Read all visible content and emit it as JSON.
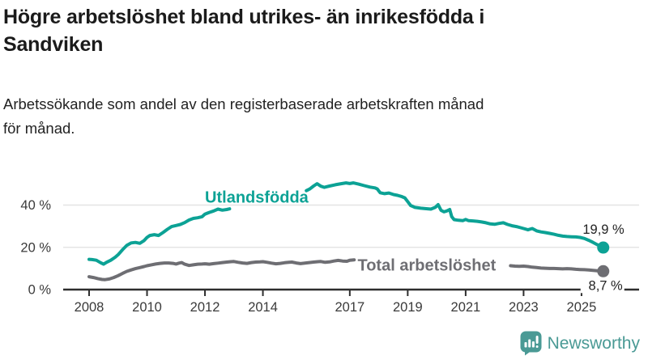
{
  "header": {
    "title": "Högre arbetslöshet bland utrikes- än inrikesfödda i\nSandviken",
    "subtitle": "Arbetssökande som andel av den registerbaserade arbetskraften månad\nför månad."
  },
  "branding": {
    "logo_text": "Newsworthy",
    "logo_color": "#4a9a95",
    "logo_icon": "bar-chart-speech-bubble-icon"
  },
  "chart_data": {
    "type": "line",
    "title": "",
    "xlabel": "",
    "ylabel": "",
    "x_axis": {
      "ticks": [
        2008,
        2010,
        2012,
        2014,
        2017,
        2019,
        2021,
        2023,
        2025
      ],
      "tick_labels": [
        "2008",
        "2010",
        "2012",
        "2014",
        "2017",
        "2019",
        "2021",
        "2023",
        "2025"
      ],
      "range": [
        2007.1,
        2027.0
      ]
    },
    "y_axis": {
      "ticks": [
        {
          "value": 0,
          "label": "0 %"
        },
        {
          "value": 20,
          "label": "20 %"
        },
        {
          "value": 40,
          "label": "40 %"
        }
      ],
      "range": [
        0,
        55
      ],
      "grid": true
    },
    "colors": {
      "axis": "#2e2e2e",
      "grid": "#e4e4e4",
      "tick_text": "#3a3a3a",
      "value_label_text": "#222222"
    },
    "series": [
      {
        "name": "Utlandsfödda",
        "color": "#0ca295",
        "end_value": 19.9,
        "end_label": "19,9 %",
        "end_label_offset": [
          26,
          -17
        ],
        "end_label_bg": false,
        "label_anchor": [
          2012.0,
          41.2
        ],
        "segments": [
          [
            [
              2008.0,
              14.3
            ],
            [
              2008.1,
              14.2
            ],
            [
              2008.25,
              13.9
            ],
            [
              2008.4,
              12.7
            ],
            [
              2008.5,
              12.0
            ],
            [
              2008.6,
              12.9
            ],
            [
              2008.75,
              13.9
            ],
            [
              2008.9,
              15.3
            ],
            [
              2009.0,
              16.5
            ],
            [
              2009.15,
              18.8
            ],
            [
              2009.3,
              20.9
            ],
            [
              2009.45,
              22.1
            ],
            [
              2009.6,
              22.3
            ],
            [
              2009.75,
              21.9
            ],
            [
              2009.9,
              23.2
            ],
            [
              2010.0,
              24.7
            ],
            [
              2010.1,
              25.6
            ],
            [
              2010.25,
              26.0
            ],
            [
              2010.4,
              25.6
            ],
            [
              2010.55,
              27.0
            ],
            [
              2010.7,
              28.5
            ],
            [
              2010.85,
              29.8
            ],
            [
              2011.0,
              30.3
            ],
            [
              2011.15,
              30.8
            ],
            [
              2011.3,
              31.7
            ],
            [
              2011.45,
              32.9
            ],
            [
              2011.6,
              33.7
            ],
            [
              2011.75,
              34.0
            ],
            [
              2011.9,
              34.5
            ],
            [
              2012.0,
              35.7
            ],
            [
              2012.15,
              36.5
            ],
            [
              2012.3,
              37.2
            ],
            [
              2012.45,
              38.1
            ],
            [
              2012.6,
              37.6
            ],
            [
              2012.75,
              37.9
            ],
            [
              2012.85,
              38.2
            ]
          ],
          [
            [
              2015.5,
              46.8
            ],
            [
              2015.62,
              47.6
            ],
            [
              2015.75,
              49.0
            ],
            [
              2015.87,
              50.1
            ],
            [
              2016.0,
              48.9
            ],
            [
              2016.12,
              48.4
            ],
            [
              2016.3,
              49.0
            ],
            [
              2016.5,
              49.6
            ],
            [
              2016.7,
              50.1
            ],
            [
              2016.87,
              50.5
            ],
            [
              2017.0,
              50.2
            ],
            [
              2017.12,
              50.5
            ],
            [
              2017.3,
              49.9
            ],
            [
              2017.5,
              49.2
            ],
            [
              2017.7,
              48.5
            ],
            [
              2017.87,
              48.1
            ],
            [
              2017.95,
              47.6
            ],
            [
              2018.05,
              45.8
            ],
            [
              2018.2,
              45.4
            ],
            [
              2018.35,
              45.7
            ],
            [
              2018.5,
              45.0
            ],
            [
              2018.65,
              44.6
            ],
            [
              2018.8,
              44.0
            ],
            [
              2018.9,
              43.4
            ],
            [
              2019.0,
              41.6
            ],
            [
              2019.1,
              39.8
            ],
            [
              2019.25,
              38.9
            ],
            [
              2019.45,
              38.5
            ],
            [
              2019.6,
              38.3
            ],
            [
              2019.8,
              38.1
            ],
            [
              2019.95,
              38.9
            ],
            [
              2020.05,
              40.2
            ],
            [
              2020.15,
              37.5
            ],
            [
              2020.25,
              36.8
            ],
            [
              2020.35,
              37.2
            ],
            [
              2020.45,
              37.9
            ],
            [
              2020.52,
              34.5
            ],
            [
              2020.6,
              33.1
            ],
            [
              2020.75,
              32.8
            ],
            [
              2020.9,
              32.6
            ],
            [
              2021.0,
              33.2
            ],
            [
              2021.1,
              32.6
            ],
            [
              2021.25,
              32.5
            ],
            [
              2021.4,
              32.3
            ],
            [
              2021.55,
              32.0
            ],
            [
              2021.7,
              31.6
            ],
            [
              2021.85,
              31.1
            ],
            [
              2022.0,
              30.9
            ],
            [
              2022.15,
              31.3
            ],
            [
              2022.3,
              31.6
            ],
            [
              2022.45,
              30.8
            ],
            [
              2022.6,
              30.2
            ],
            [
              2022.75,
              29.8
            ],
            [
              2022.9,
              29.3
            ],
            [
              2023.0,
              28.9
            ],
            [
              2023.15,
              28.3
            ],
            [
              2023.3,
              28.9
            ],
            [
              2023.45,
              27.8
            ],
            [
              2023.6,
              27.3
            ],
            [
              2023.75,
              27.0
            ],
            [
              2023.9,
              26.6
            ],
            [
              2024.05,
              26.2
            ],
            [
              2024.2,
              25.7
            ],
            [
              2024.35,
              25.3
            ],
            [
              2024.5,
              25.1
            ],
            [
              2024.65,
              25.0
            ],
            [
              2024.8,
              24.9
            ],
            [
              2024.95,
              24.7
            ],
            [
              2025.1,
              24.2
            ],
            [
              2025.25,
              23.3
            ],
            [
              2025.4,
              22.3
            ],
            [
              2025.55,
              21.2
            ],
            [
              2025.75,
              19.9
            ]
          ]
        ]
      },
      {
        "name": "Total arbetslöshet",
        "color": "#6e6e73",
        "end_value": 8.7,
        "end_label": "8,7 %",
        "end_label_offset": [
          24,
          23
        ],
        "end_label_bg": true,
        "label_anchor": [
          2017.27,
          9.0
        ],
        "segments": [
          [
            [
              2008.0,
              6.1
            ],
            [
              2008.15,
              5.7
            ],
            [
              2008.3,
              5.2
            ],
            [
              2008.45,
              4.8
            ],
            [
              2008.55,
              4.7
            ],
            [
              2008.7,
              5.0
            ],
            [
              2008.85,
              5.7
            ],
            [
              2009.0,
              6.6
            ],
            [
              2009.15,
              7.6
            ],
            [
              2009.3,
              8.6
            ],
            [
              2009.45,
              9.3
            ],
            [
              2009.6,
              9.9
            ],
            [
              2009.75,
              10.4
            ],
            [
              2009.9,
              10.9
            ],
            [
              2010.0,
              11.3
            ],
            [
              2010.15,
              11.7
            ],
            [
              2010.3,
              12.1
            ],
            [
              2010.45,
              12.4
            ],
            [
              2010.6,
              12.6
            ],
            [
              2010.75,
              12.6
            ],
            [
              2010.9,
              12.4
            ],
            [
              2011.0,
              12.1
            ],
            [
              2011.1,
              12.5
            ],
            [
              2011.2,
              12.8
            ],
            [
              2011.3,
              12.0
            ],
            [
              2011.45,
              11.4
            ],
            [
              2011.6,
              11.7
            ],
            [
              2011.75,
              12.0
            ],
            [
              2011.9,
              12.1
            ],
            [
              2012.0,
              12.2
            ],
            [
              2012.15,
              12.0
            ],
            [
              2012.3,
              12.3
            ],
            [
              2012.45,
              12.5
            ],
            [
              2012.6,
              12.8
            ],
            [
              2012.75,
              13.0
            ],
            [
              2012.9,
              13.2
            ],
            [
              2013.0,
              13.3
            ],
            [
              2013.15,
              12.9
            ],
            [
              2013.3,
              12.6
            ],
            [
              2013.45,
              12.4
            ],
            [
              2013.6,
              12.8
            ],
            [
              2013.75,
              13.0
            ],
            [
              2013.9,
              13.1
            ],
            [
              2014.0,
              13.2
            ],
            [
              2014.15,
              12.9
            ],
            [
              2014.3,
              12.5
            ],
            [
              2014.45,
              12.2
            ],
            [
              2014.6,
              12.4
            ],
            [
              2014.75,
              12.7
            ],
            [
              2014.9,
              12.9
            ],
            [
              2015.0,
              13.0
            ],
            [
              2015.15,
              12.6
            ],
            [
              2015.3,
              12.3
            ],
            [
              2015.45,
              12.5
            ],
            [
              2015.6,
              12.8
            ],
            [
              2015.75,
              13.0
            ],
            [
              2015.9,
              13.2
            ],
            [
              2016.0,
              13.3
            ],
            [
              2016.15,
              12.9
            ],
            [
              2016.3,
              13.1
            ],
            [
              2016.45,
              13.5
            ],
            [
              2016.6,
              13.8
            ],
            [
              2016.75,
              13.5
            ],
            [
              2016.9,
              13.4
            ],
            [
              2017.0,
              13.9
            ],
            [
              2017.15,
              14.1
            ]
          ],
          [
            [
              2022.55,
              11.3
            ],
            [
              2022.7,
              11.1
            ],
            [
              2022.85,
              11.0
            ],
            [
              2023.0,
              11.1
            ],
            [
              2023.15,
              10.9
            ],
            [
              2023.3,
              10.6
            ],
            [
              2023.45,
              10.4
            ],
            [
              2023.6,
              10.2
            ],
            [
              2023.75,
              10.1
            ],
            [
              2023.9,
              10.0
            ],
            [
              2024.05,
              10.0
            ],
            [
              2024.2,
              9.9
            ],
            [
              2024.35,
              9.8
            ],
            [
              2024.5,
              9.9
            ],
            [
              2024.65,
              9.8
            ],
            [
              2024.8,
              9.6
            ],
            [
              2024.95,
              9.5
            ],
            [
              2025.1,
              9.4
            ],
            [
              2025.25,
              9.3
            ],
            [
              2025.4,
              9.1
            ],
            [
              2025.55,
              8.9
            ],
            [
              2025.75,
              8.7
            ]
          ]
        ]
      }
    ]
  }
}
